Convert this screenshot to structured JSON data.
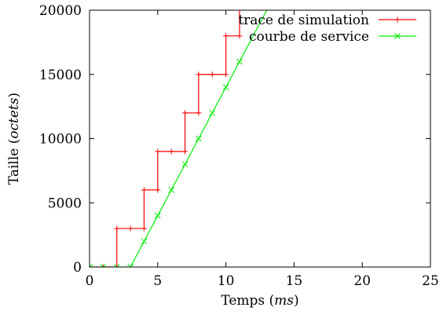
{
  "chart_data": {
    "type": "line",
    "xlabel": {
      "prefix": "Temps (",
      "unit": "ms",
      "suffix": ")"
    },
    "ylabel": {
      "prefix": "Taille (",
      "unit": "octets",
      "suffix": ")"
    },
    "xlim": [
      0,
      25
    ],
    "ylim": [
      0,
      20000
    ],
    "xticks": [
      0,
      5,
      10,
      15,
      20,
      25
    ],
    "yticks": [
      0,
      5000,
      10000,
      15000,
      20000
    ],
    "grid": false,
    "legend_position": "top-right",
    "series": [
      {
        "name": "trace de simulation",
        "color": "#ff0000",
        "marker": "plus",
        "step": true,
        "points": [
          [
            0,
            0
          ],
          [
            1,
            0
          ],
          [
            2,
            0
          ],
          [
            2,
            3000
          ],
          [
            3,
            3000
          ],
          [
            4,
            3000
          ],
          [
            4,
            6000
          ],
          [
            5,
            6000
          ],
          [
            5,
            9000
          ],
          [
            6,
            9000
          ],
          [
            7,
            9000
          ],
          [
            7,
            12000
          ],
          [
            8,
            12000
          ],
          [
            8,
            15000
          ],
          [
            9,
            15000
          ],
          [
            10,
            15000
          ],
          [
            10,
            18000
          ],
          [
            11,
            18000
          ],
          [
            11,
            20000
          ]
        ],
        "markers": [
          [
            0,
            0
          ],
          [
            1,
            0
          ],
          [
            2,
            0
          ],
          [
            2,
            3000
          ],
          [
            3,
            3000
          ],
          [
            4,
            3000
          ],
          [
            4,
            6000
          ],
          [
            5,
            6000
          ],
          [
            5,
            9000
          ],
          [
            6,
            9000
          ],
          [
            7,
            9000
          ],
          [
            7,
            12000
          ],
          [
            8,
            12000
          ],
          [
            8,
            15000
          ],
          [
            9,
            15000
          ],
          [
            10,
            15000
          ],
          [
            10,
            18000
          ],
          [
            11,
            18000
          ]
        ]
      },
      {
        "name": "courbe de service",
        "color": "#00ee00",
        "marker": "x",
        "step": false,
        "points": [
          [
            0,
            0
          ],
          [
            3,
            0
          ],
          [
            13,
            20000
          ]
        ],
        "markers": [
          [
            0,
            0
          ],
          [
            1,
            0
          ],
          [
            2,
            0
          ],
          [
            3,
            0
          ],
          [
            4,
            2000
          ],
          [
            5,
            4000
          ],
          [
            6,
            6000
          ],
          [
            7,
            8000
          ],
          [
            8,
            10000
          ],
          [
            9,
            12000
          ],
          [
            10,
            14000
          ],
          [
            11,
            16000
          ]
        ]
      }
    ]
  }
}
